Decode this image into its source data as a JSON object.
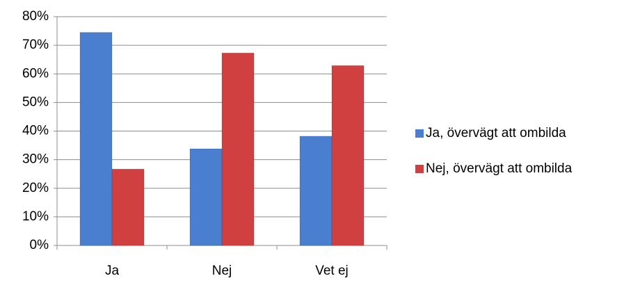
{
  "chart_data": {
    "type": "bar",
    "categories": [
      "Ja",
      "Nej",
      "Vet ej"
    ],
    "series": [
      {
        "name": "Ja, övervägt att ombilda",
        "color": "#4a7fd0",
        "values": [
          74.5,
          33.8,
          38.2
        ]
      },
      {
        "name": "Nej, övervägt att ombilda",
        "color": "#d04040",
        "values": [
          26.7,
          67.3,
          62.9
        ]
      }
    ],
    "ylim": [
      0,
      80
    ],
    "yticks": [
      {
        "value": 0,
        "label": "0%"
      },
      {
        "value": 10,
        "label": "10%"
      },
      {
        "value": 20,
        "label": "20%"
      },
      {
        "value": 30,
        "label": "30%"
      },
      {
        "value": 40,
        "label": "40%"
      },
      {
        "value": 50,
        "label": "50%"
      },
      {
        "value": 60,
        "label": "60%"
      },
      {
        "value": 70,
        "label": "70%"
      },
      {
        "value": 80,
        "label": "80%"
      }
    ],
    "grid": true,
    "legend": "right"
  }
}
